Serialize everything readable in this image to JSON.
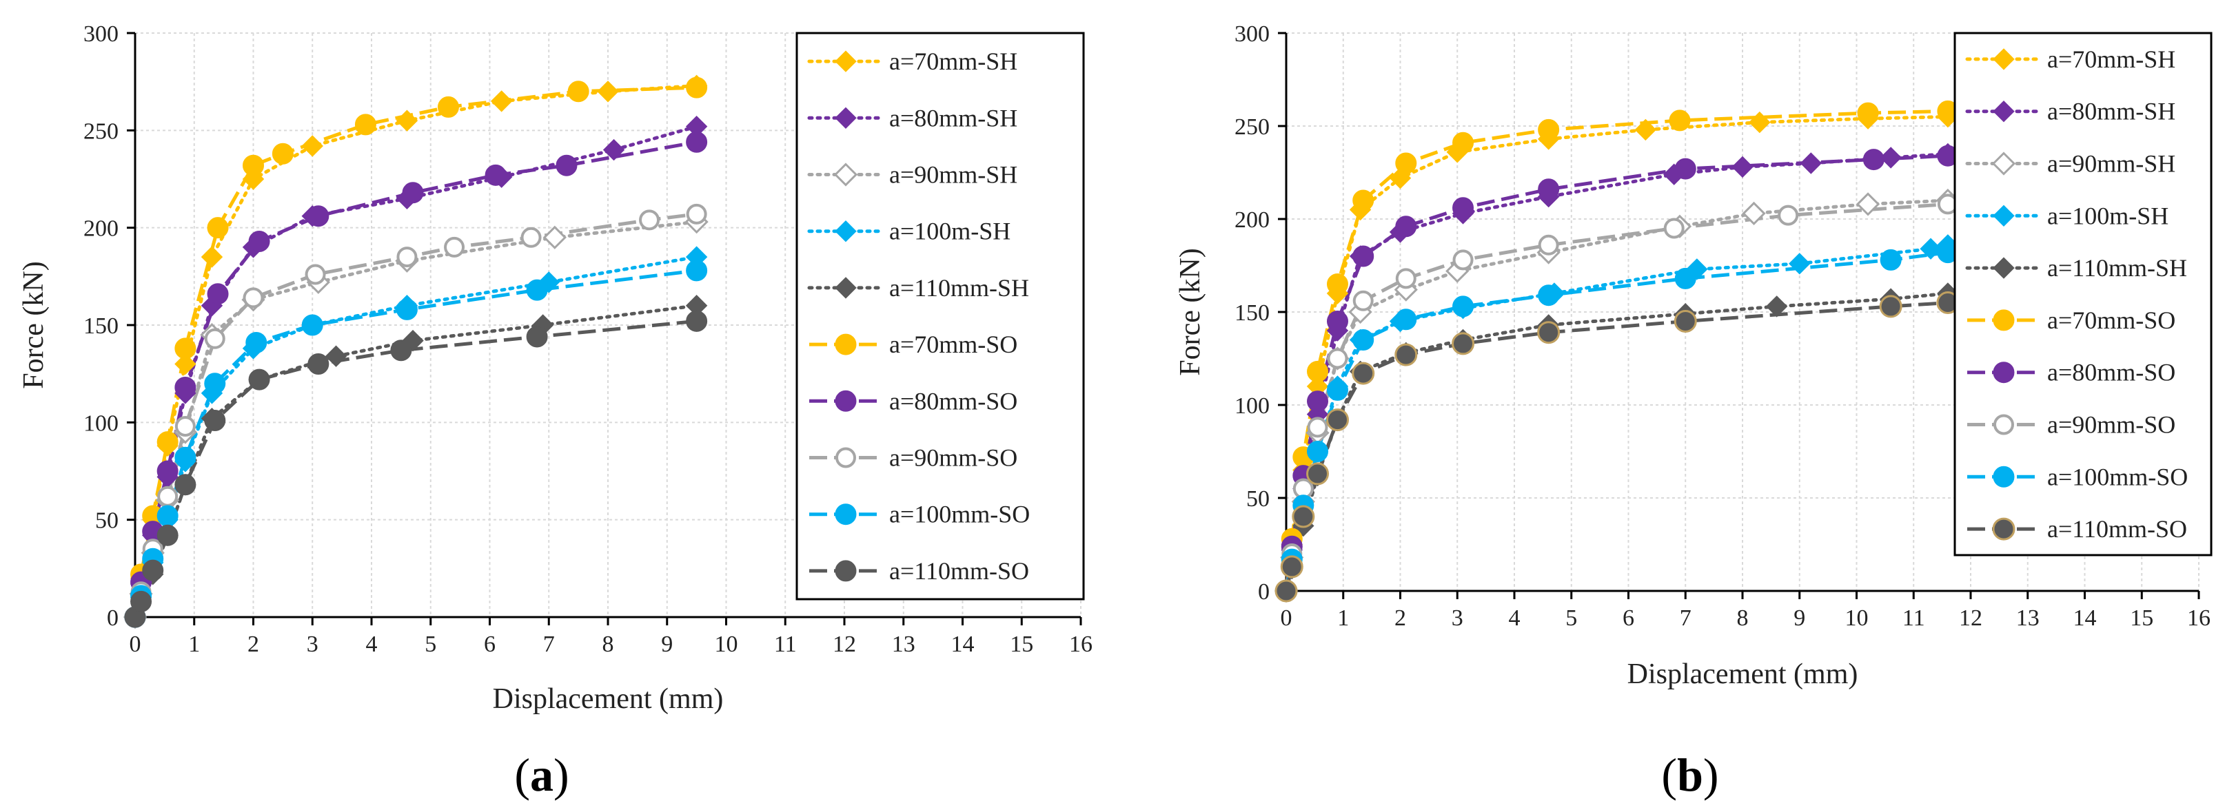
{
  "colors": {
    "a70": "#FFC000",
    "a80": "#7030A0",
    "a90": "#A6A6A6",
    "a100": "#00B0F0",
    "a110": "#595959",
    "a110_so_marker_edge": "#C0A060",
    "grid": "#D9D9D9",
    "axis": "#000000"
  },
  "chart_data": [
    {
      "type": "line",
      "panel_label": "(a)",
      "panel_letter": "a",
      "xlabel": "Displacement  (mm)",
      "ylabel": "Force (kN)",
      "xlim": [
        0,
        16
      ],
      "ylim": [
        0,
        300
      ],
      "xticks": [
        "0",
        "1",
        "2",
        "3",
        "4",
        "5",
        "6",
        "7",
        "8",
        "9",
        "10",
        "11",
        "12",
        "13",
        "14",
        "15",
        "16"
      ],
      "yticks": [
        "0",
        "50",
        "100",
        "150",
        "200",
        "250",
        "300"
      ],
      "grid": true,
      "legend_position": "top-right",
      "series": [
        {
          "name": "a=70mm-SH",
          "group": "a70",
          "style": "SH",
          "x": [
            0,
            0.1,
            0.3,
            0.55,
            0.85,
            1.3,
            2.0,
            3.0,
            4.6,
            6.2,
            8.0,
            9.5
          ],
          "y": [
            0,
            20,
            50,
            88,
            130,
            185,
            225,
            242,
            255,
            265,
            270,
            273
          ]
        },
        {
          "name": "a=80mm-SH",
          "group": "a80",
          "style": "SH",
          "x": [
            0,
            0.1,
            0.3,
            0.55,
            0.85,
            1.3,
            2.0,
            3.0,
            4.6,
            6.2,
            8.1,
            9.5
          ],
          "y": [
            0,
            17,
            42,
            72,
            115,
            160,
            190,
            206,
            215,
            226,
            240,
            252
          ]
        },
        {
          "name": "a=90mm-SH",
          "group": "a90",
          "style": "SH",
          "x": [
            0,
            0.1,
            0.3,
            0.55,
            0.85,
            1.3,
            2.0,
            3.1,
            4.6,
            7.1,
            9.5
          ],
          "y": [
            0,
            12,
            33,
            60,
            95,
            145,
            163,
            172,
            183,
            195,
            203
          ]
        },
        {
          "name": "a=100m-SH",
          "group": "a100",
          "style": "SH",
          "x": [
            0,
            0.1,
            0.3,
            0.55,
            0.85,
            1.3,
            2.0,
            3.0,
            4.6,
            7.0,
            9.5
          ],
          "y": [
            0,
            10,
            28,
            50,
            80,
            115,
            138,
            150,
            160,
            172,
            185
          ]
        },
        {
          "name": "a=110mm-SH",
          "group": "a110",
          "style": "SH",
          "x": [
            0,
            0.1,
            0.3,
            0.55,
            0.85,
            1.3,
            2.1,
            3.4,
            4.7,
            6.9,
            9.5
          ],
          "y": [
            0,
            8,
            22,
            42,
            68,
            102,
            122,
            134,
            142,
            150,
            160
          ]
        },
        {
          "name": "a=70mm-SO",
          "group": "a70",
          "style": "SO",
          "x": [
            0,
            0.1,
            0.3,
            0.55,
            0.85,
            1.4,
            2.0,
            2.5,
            3.9,
            5.3,
            7.5,
            9.5
          ],
          "y": [
            0,
            22,
            52,
            90,
            138,
            200,
            232,
            238,
            253,
            262,
            270,
            272
          ]
        },
        {
          "name": "a=80mm-SO",
          "group": "a80",
          "style": "SO",
          "x": [
            0,
            0.1,
            0.3,
            0.55,
            0.85,
            1.4,
            2.1,
            3.1,
            4.7,
            6.1,
            7.3,
            9.5
          ],
          "y": [
            0,
            18,
            44,
            75,
            118,
            166,
            193,
            206,
            218,
            227,
            232,
            244
          ]
        },
        {
          "name": "a=90mm-SO",
          "group": "a90",
          "style": "SO",
          "x": [
            0,
            0.1,
            0.3,
            0.55,
            0.85,
            1.35,
            2.0,
            3.05,
            4.6,
            5.4,
            6.7,
            8.7,
            9.5
          ],
          "y": [
            0,
            13,
            35,
            62,
            98,
            143,
            164,
            176,
            185,
            190,
            195,
            204,
            207
          ]
        },
        {
          "name": "a=100mm-SO",
          "group": "a100",
          "style": "SO",
          "x": [
            0,
            0.1,
            0.3,
            0.55,
            0.85,
            1.35,
            2.05,
            3.0,
            4.6,
            6.8,
            9.5
          ],
          "y": [
            0,
            11,
            30,
            52,
            82,
            120,
            141,
            150,
            158,
            168,
            178
          ]
        },
        {
          "name": "a=110mm-SO",
          "group": "a110",
          "style": "SO",
          "x": [
            0,
            0.1,
            0.3,
            0.55,
            0.85,
            1.35,
            2.1,
            3.1,
            4.5,
            6.8,
            9.5
          ],
          "y": [
            0,
            8,
            24,
            42,
            68,
            101,
            122,
            130,
            137,
            144,
            152
          ]
        }
      ]
    },
    {
      "type": "line",
      "panel_label": "(b)",
      "panel_letter": "b",
      "xlabel": "Displacement  (mm)",
      "ylabel": "Force (kN)",
      "xlim": [
        0,
        16
      ],
      "ylim": [
        0,
        300
      ],
      "xticks": [
        "0",
        "1",
        "2",
        "3",
        "4",
        "5",
        "6",
        "7",
        "8",
        "9",
        "10",
        "11",
        "12",
        "13",
        "14",
        "15",
        "16"
      ],
      "yticks": [
        "0",
        "50",
        "100",
        "150",
        "200",
        "250",
        "300"
      ],
      "grid": true,
      "legend_position": "top-right",
      "series": [
        {
          "name": "a=70mm-SH",
          "group": "a70",
          "style": "SH",
          "x": [
            0,
            0.1,
            0.3,
            0.55,
            0.9,
            1.3,
            2.0,
            3.0,
            4.6,
            6.3,
            8.3,
            10.2,
            11.6
          ],
          "y": [
            0,
            25,
            65,
            110,
            160,
            205,
            222,
            236,
            243,
            248,
            252,
            254,
            255
          ]
        },
        {
          "name": "a=80mm-SH",
          "group": "a80",
          "style": "SH",
          "x": [
            0,
            0.1,
            0.3,
            0.55,
            0.9,
            1.3,
            2.0,
            3.1,
            4.6,
            6.8,
            8.0,
            9.2,
            10.6,
            11.6
          ],
          "y": [
            0,
            22,
            55,
            95,
            140,
            180,
            193,
            203,
            212,
            224,
            228,
            230,
            233,
            235
          ]
        },
        {
          "name": "a=90mm-SH",
          "group": "a90",
          "style": "SH",
          "x": [
            0,
            0.1,
            0.3,
            0.55,
            0.9,
            1.3,
            2.1,
            3.0,
            4.6,
            6.9,
            8.2,
            10.2,
            11.6
          ],
          "y": [
            0,
            18,
            48,
            85,
            125,
            150,
            162,
            172,
            182,
            196,
            203,
            208,
            210
          ]
        },
        {
          "name": "a=100m-SH",
          "group": "a100",
          "style": "SH",
          "x": [
            0,
            0.1,
            0.3,
            0.55,
            0.9,
            1.3,
            2.0,
            3.1,
            4.7,
            7.2,
            9.0,
            11.3,
            11.6
          ],
          "y": [
            0,
            15,
            42,
            75,
            110,
            135,
            145,
            152,
            160,
            173,
            176,
            184,
            186
          ]
        },
        {
          "name": "a=110mm-SH",
          "group": "a110",
          "style": "SH",
          "x": [
            0,
            0.1,
            0.3,
            0.55,
            0.9,
            1.3,
            2.1,
            3.1,
            4.6,
            7.0,
            8.6,
            10.6,
            11.6
          ],
          "y": [
            0,
            12,
            35,
            62,
            92,
            118,
            128,
            135,
            143,
            149,
            153,
            157,
            160
          ]
        },
        {
          "name": "a=70mm-SO",
          "group": "a70",
          "style": "SO",
          "x": [
            0,
            0.1,
            0.3,
            0.55,
            0.9,
            1.35,
            2.1,
            3.1,
            4.6,
            6.9,
            10.2,
            11.6
          ],
          "y": [
            0,
            28,
            72,
            118,
            165,
            210,
            230,
            241,
            248,
            253,
            257,
            258
          ]
        },
        {
          "name": "a=80mm-SO",
          "group": "a80",
          "style": "SO",
          "x": [
            0,
            0.1,
            0.3,
            0.55,
            0.9,
            1.35,
            2.1,
            3.1,
            4.6,
            7.0,
            10.3,
            11.6
          ],
          "y": [
            0,
            24,
            62,
            102,
            145,
            180,
            196,
            206,
            216,
            227,
            232,
            234
          ]
        },
        {
          "name": "a=90mm-SO",
          "group": "a90",
          "style": "SO",
          "x": [
            0,
            0.1,
            0.3,
            0.55,
            0.9,
            1.35,
            2.1,
            3.1,
            4.6,
            6.8,
            8.8,
            11.6
          ],
          "y": [
            0,
            20,
            55,
            88,
            125,
            156,
            168,
            178,
            186,
            195,
            202,
            208
          ]
        },
        {
          "name": "a=100mm-SO",
          "group": "a100",
          "style": "SO",
          "x": [
            0,
            0.1,
            0.3,
            0.55,
            0.9,
            1.35,
            2.1,
            3.1,
            4.6,
            7.0,
            10.6,
            11.6
          ],
          "y": [
            0,
            17,
            46,
            75,
            108,
            135,
            146,
            153,
            159,
            168,
            178,
            182
          ]
        },
        {
          "name": "a=110mm-SO",
          "group": "a110",
          "style": "SO",
          "x": [
            0,
            0.1,
            0.3,
            0.55,
            0.9,
            1.35,
            2.1,
            3.1,
            4.6,
            7.0,
            10.6,
            11.6
          ],
          "y": [
            0,
            13,
            40,
            63,
            92,
            117,
            127,
            133,
            139,
            145,
            153,
            155
          ]
        }
      ]
    }
  ]
}
